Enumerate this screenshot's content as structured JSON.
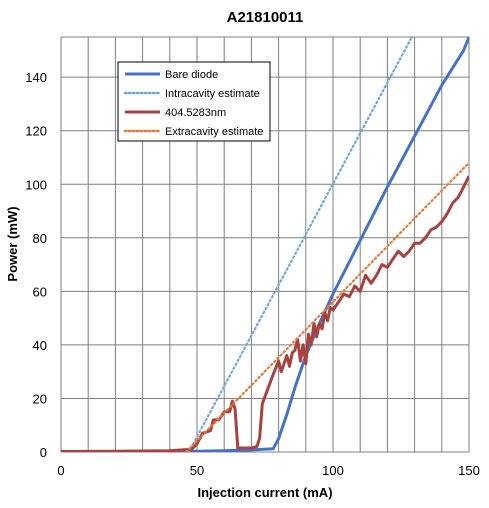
{
  "chart_data": {
    "type": "line",
    "title": "A21810011",
    "xlabel": "Injection current (mA)",
    "ylabel": "Power (mW)",
    "xlim": [
      0,
      150
    ],
    "ylim": [
      0,
      155
    ],
    "xticks": [
      "0",
      "50",
      "100",
      "150"
    ],
    "yticks": [
      "0",
      "20",
      "40",
      "60",
      "80",
      "100",
      "120",
      "140"
    ],
    "grid": true,
    "legend_position": "top-left",
    "series": [
      {
        "name": "Bare diode",
        "color": "#4472C4",
        "style": "solid",
        "x": [
          0,
          20,
          40,
          50,
          60,
          70,
          78,
          80,
          83,
          86,
          90,
          95,
          100,
          110,
          120,
          130,
          140,
          148,
          150
        ],
        "y": [
          0,
          0.1,
          0.2,
          0.3,
          0.5,
          0.8,
          1.2,
          5,
          14,
          24,
          36,
          48,
          59,
          79,
          99,
          118,
          137,
          150,
          155
        ]
      },
      {
        "name": "Intracavity estimate",
        "color": "#6FA8DC",
        "style": "dotted",
        "x": [
          47,
          129
        ],
        "y": [
          0,
          155
        ]
      },
      {
        "name": "404.5283nm",
        "color": "#A9413E",
        "style": "solid",
        "x": [
          0,
          20,
          40,
          48,
          50,
          52,
          55,
          56,
          58,
          60,
          62,
          63,
          64,
          65,
          70,
          72,
          73,
          74,
          78,
          80,
          81,
          83,
          84,
          85,
          86,
          87,
          88,
          89,
          90,
          91,
          92,
          93,
          94,
          95,
          96,
          97,
          98,
          99,
          100,
          102,
          104,
          106,
          108,
          110,
          112,
          114,
          116,
          118,
          120,
          122,
          124,
          126,
          128,
          130,
          132,
          134,
          136,
          138,
          140,
          142,
          144,
          146,
          148,
          150
        ],
        "y": [
          0.2,
          0.3,
          0.5,
          1,
          3,
          7,
          8,
          12,
          12,
          15,
          15,
          19,
          16,
          1.5,
          1.5,
          2,
          5,
          18,
          29,
          34,
          30,
          36,
          32,
          37,
          38,
          42,
          34,
          40,
          33,
          44,
          40,
          48,
          43,
          48,
          46,
          52,
          49,
          54,
          53,
          56,
          59,
          58,
          62,
          60,
          66,
          63,
          66,
          70,
          69,
          72,
          75,
          73,
          75,
          78,
          78,
          80,
          83,
          84,
          86,
          89,
          93,
          95,
          99,
          103
        ]
      },
      {
        "name": "Extracavity estimate",
        "color": "#E07B39",
        "style": "dotted",
        "x": [
          46,
          150
        ],
        "y": [
          0,
          108
        ]
      }
    ]
  }
}
